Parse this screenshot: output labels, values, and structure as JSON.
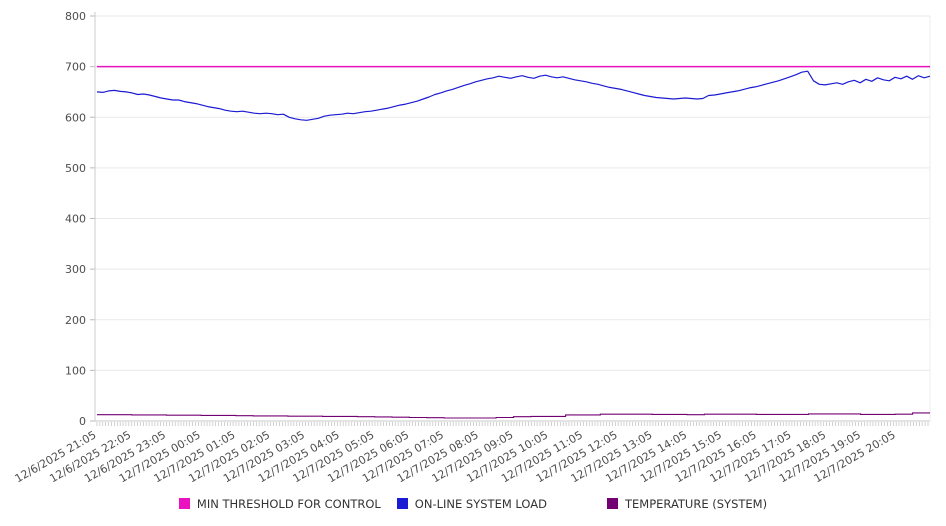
{
  "chart_data": {
    "type": "line",
    "title": "",
    "xlabel": "",
    "ylabel": "",
    "ylim": [
      0,
      800
    ],
    "y_ticks": [
      800,
      700,
      600,
      500,
      400,
      300,
      200,
      100,
      0
    ],
    "grid": "horizontal",
    "legend_position": "bottom-center",
    "x_tick_labels": [
      "12/6/2025 21:05",
      "12/6/2025 22:05",
      "12/6/2025 23:05",
      "12/7/2025 00:05",
      "12/7/2025 01:05",
      "12/7/2025 02:05",
      "12/7/2025 03:05",
      "12/7/2025 04:05",
      "12/7/2025 05:05",
      "12/7/2025 06:05",
      "12/7/2025 07:05",
      "12/7/2025 08:05",
      "12/7/2025 09:05",
      "12/7/2025 10:05",
      "12/7/2025 11:05",
      "12/7/2025 12:05",
      "12/7/2025 13:05",
      "12/7/2025 14:05",
      "12/7/2025 15:05",
      "12/7/2025 16:05",
      "12/7/2025 17:05",
      "12/7/2025 18:05",
      "12/7/2025 19:05",
      "12/7/2025 20:05"
    ],
    "series": [
      {
        "name": "MIN THRESHOLD FOR CONTROL",
        "color": "#e911c0",
        "style": "threshold",
        "value": 700
      },
      {
        "name": "ON-LINE SYSTEM LOAD",
        "color": "#1b1bd3",
        "style": "line",
        "interval_minutes": 10,
        "values": [
          650,
          649,
          652,
          653,
          651,
          650,
          648,
          645,
          646,
          644,
          641,
          638,
          636,
          634,
          634,
          631,
          629,
          627,
          624,
          621,
          619,
          617,
          614,
          612,
          611,
          612,
          610,
          608,
          607,
          608,
          607,
          605,
          606,
          600,
          597,
          595,
          594,
          596,
          598,
          602,
          604,
          605,
          606,
          608,
          607,
          609,
          611,
          612,
          614,
          616,
          618,
          621,
          624,
          626,
          629,
          632,
          636,
          640,
          645,
          648,
          652,
          655,
          659,
          663,
          666,
          670,
          673,
          676,
          678,
          681,
          679,
          677,
          680,
          682,
          679,
          677,
          681,
          683,
          680,
          678,
          680,
          677,
          674,
          672,
          670,
          667,
          665,
          662,
          659,
          657,
          655,
          652,
          649,
          646,
          643,
          641,
          639,
          638,
          637,
          636,
          637,
          638,
          637,
          636,
          637,
          643,
          644,
          646,
          648,
          650,
          652,
          655,
          658,
          660,
          663,
          666,
          669,
          672,
          676,
          680,
          684,
          689,
          691,
          672,
          665,
          664,
          666,
          668,
          665,
          670,
          673,
          668,
          675,
          671,
          678,
          674,
          672,
          679,
          676,
          681,
          675,
          682,
          678,
          681
        ]
      },
      {
        "name": "TEMPERATURE (SYSTEM)",
        "color": "#730073",
        "style": "step",
        "interval_minutes": 30,
        "values": [
          12.5,
          12.5,
          12,
          12,
          11.5,
          11.5,
          11,
          11,
          10.5,
          10,
          10,
          9.5,
          9.5,
          9,
          9,
          8.5,
          8,
          7.5,
          7,
          6.5,
          6,
          6,
          6,
          7,
          8.5,
          9,
          9,
          12,
          12,
          13.5,
          13.5,
          13.5,
          13,
          13,
          12.5,
          13.5,
          13.5,
          13.5,
          13,
          13,
          13,
          14,
          14,
          14,
          13,
          13,
          13.5,
          16,
          16
        ]
      }
    ]
  }
}
